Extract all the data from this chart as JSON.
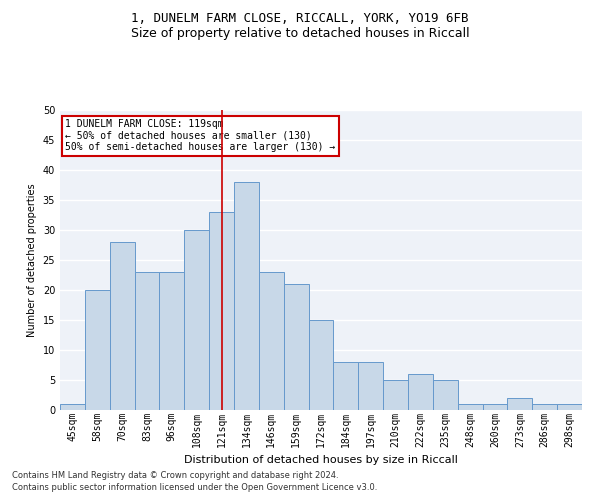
{
  "title1": "1, DUNELM FARM CLOSE, RICCALL, YORK, YO19 6FB",
  "title2": "Size of property relative to detached houses in Riccall",
  "xlabel": "Distribution of detached houses by size in Riccall",
  "ylabel": "Number of detached properties",
  "categories": [
    "45sqm",
    "58sqm",
    "70sqm",
    "83sqm",
    "96sqm",
    "108sqm",
    "121sqm",
    "134sqm",
    "146sqm",
    "159sqm",
    "172sqm",
    "184sqm",
    "197sqm",
    "210sqm",
    "222sqm",
    "235sqm",
    "248sqm",
    "260sqm",
    "273sqm",
    "286sqm",
    "298sqm"
  ],
  "values": [
    1,
    20,
    28,
    23,
    23,
    30,
    33,
    38,
    23,
    21,
    15,
    8,
    8,
    5,
    6,
    5,
    1,
    1,
    2,
    1,
    1
  ],
  "bar_color": "#c8d8e8",
  "bar_edge_color": "#6699cc",
  "red_line_index": 6,
  "annotation_text": "1 DUNELM FARM CLOSE: 119sqm\n← 50% of detached houses are smaller (130)\n50% of semi-detached houses are larger (130) →",
  "annotation_box_color": "#ffffff",
  "annotation_box_edge_color": "#cc0000",
  "red_line_color": "#cc0000",
  "background_color": "#eef2f8",
  "grid_color": "#ffffff",
  "footer1": "Contains HM Land Registry data © Crown copyright and database right 2024.",
  "footer2": "Contains public sector information licensed under the Open Government Licence v3.0.",
  "ylim": [
    0,
    50
  ],
  "yticks": [
    0,
    5,
    10,
    15,
    20,
    25,
    30,
    35,
    40,
    45,
    50
  ],
  "title1_fontsize": 9,
  "title2_fontsize": 9,
  "xlabel_fontsize": 8,
  "ylabel_fontsize": 7,
  "tick_fontsize": 7,
  "footer_fontsize": 6
}
